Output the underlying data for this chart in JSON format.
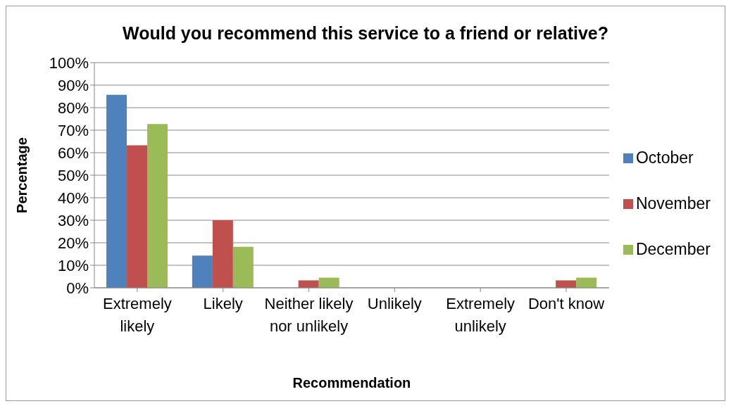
{
  "chart_data": {
    "type": "bar",
    "title": "Would you recommend this service to a friend or relative?",
    "xlabel": "Recommendation",
    "ylabel": "Percentage",
    "categories": [
      "Extremely likely",
      "Likely",
      "Neither likely nor unlikely",
      "Unlikely",
      "Extremely unlikely",
      "Don't know"
    ],
    "series": [
      {
        "name": "October",
        "color": "#4f81bd",
        "values": [
          85.7,
          14.3,
          0,
          0,
          0,
          0
        ]
      },
      {
        "name": "November",
        "color": "#c0504d",
        "values": [
          63.3,
          30,
          3.3,
          0,
          0,
          3.3
        ]
      },
      {
        "name": "December",
        "color": "#9bbb59",
        "values": [
          72.7,
          18.2,
          4.5,
          0,
          0,
          4.5
        ]
      }
    ],
    "ylim": [
      0,
      100
    ],
    "yticks": [
      {
        "value": 0,
        "label": "0%"
      },
      {
        "value": 10,
        "label": "10%"
      },
      {
        "value": 20,
        "label": "20%"
      },
      {
        "value": 30,
        "label": "30%"
      },
      {
        "value": 40,
        "label": "40%"
      },
      {
        "value": 50,
        "label": "50%"
      },
      {
        "value": 60,
        "label": "60%"
      },
      {
        "value": 70,
        "label": "70%"
      },
      {
        "value": 80,
        "label": "80%"
      },
      {
        "value": 90,
        "label": "90%"
      },
      {
        "value": 100,
        "label": "100%"
      }
    ],
    "grid": "y",
    "legend": "right"
  }
}
